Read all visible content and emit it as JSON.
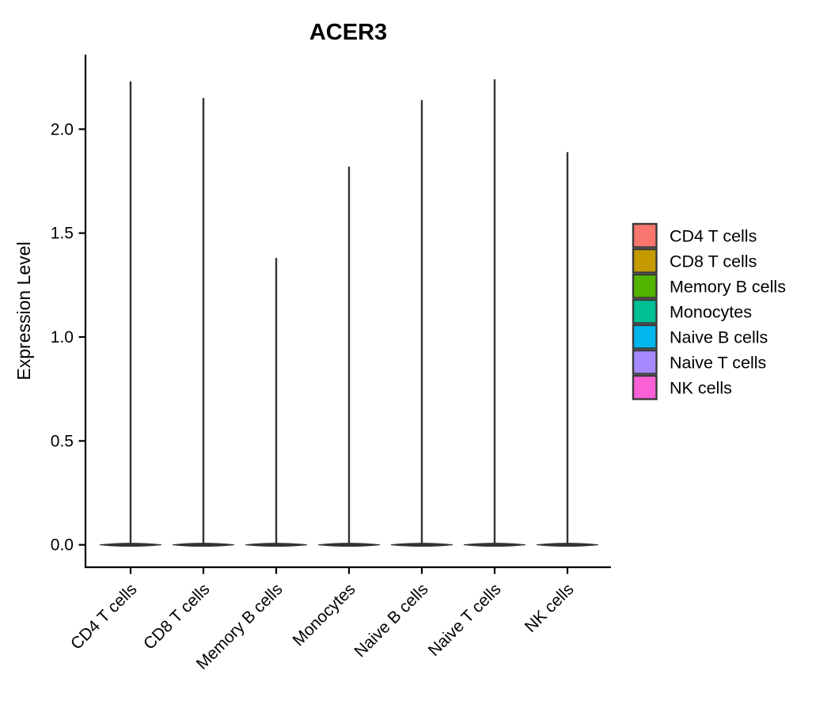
{
  "title": "ACER3",
  "axes": {
    "ylabel": "Expression Level",
    "y_tick_labels": [
      "0.0",
      "0.5",
      "1.0",
      "1.5",
      "2.0"
    ]
  },
  "chart_data": {
    "type": "violin",
    "title": "ACER3",
    "xlabel": "",
    "ylabel": "Expression Level",
    "categories": [
      "CD4 T cells",
      "CD8 T cells",
      "Memory B cells",
      "Monocytes",
      "Naive B cells",
      "Naive T cells",
      "NK cells"
    ],
    "series": [
      {
        "name": "CD4 T cells",
        "color": "#F8766D",
        "max_expression": 2.23,
        "zero_bulk": true
      },
      {
        "name": "CD8 T cells",
        "color": "#C49A00",
        "max_expression": 2.15,
        "zero_bulk": true
      },
      {
        "name": "Memory B cells",
        "color": "#53B400",
        "max_expression": 1.38,
        "zero_bulk": true
      },
      {
        "name": "Monocytes",
        "color": "#00C094",
        "max_expression": 1.82,
        "zero_bulk": true
      },
      {
        "name": "Naive B cells",
        "color": "#00B6EB",
        "max_expression": 2.14,
        "zero_bulk": true
      },
      {
        "name": "Naive T cells",
        "color": "#A58AFF",
        "max_expression": 2.24,
        "zero_bulk": true
      },
      {
        "name": "NK cells",
        "color": "#FB61D7",
        "max_expression": 1.89,
        "zero_bulk": true
      }
    ],
    "y_ticks": [
      0.0,
      0.5,
      1.0,
      1.5,
      2.0
    ],
    "ylim": [
      -0.1,
      2.36
    ],
    "grid": false,
    "legend_position": "right",
    "shape_note": "Each violin is a wide flat bulge at expression 0 with a thin vertical spike rising to the maximum expression value"
  },
  "legend": {
    "items": [
      {
        "label": "CD4 T cells",
        "color": "#F8766D"
      },
      {
        "label": "CD8 T cells",
        "color": "#C49A00"
      },
      {
        "label": "Memory B cells",
        "color": "#53B400"
      },
      {
        "label": "Monocytes",
        "color": "#00C094"
      },
      {
        "label": "Naive B cells",
        "color": "#00B6EB"
      },
      {
        "label": "Naive T cells",
        "color": "#A58AFF"
      },
      {
        "label": "NK cells",
        "color": "#FB61D7"
      }
    ]
  },
  "colors": {
    "violin_ink": "#333333",
    "axis": "#000000",
    "background": "#FFFFFF",
    "legend_swatch_border": "#3A3A3A"
  }
}
